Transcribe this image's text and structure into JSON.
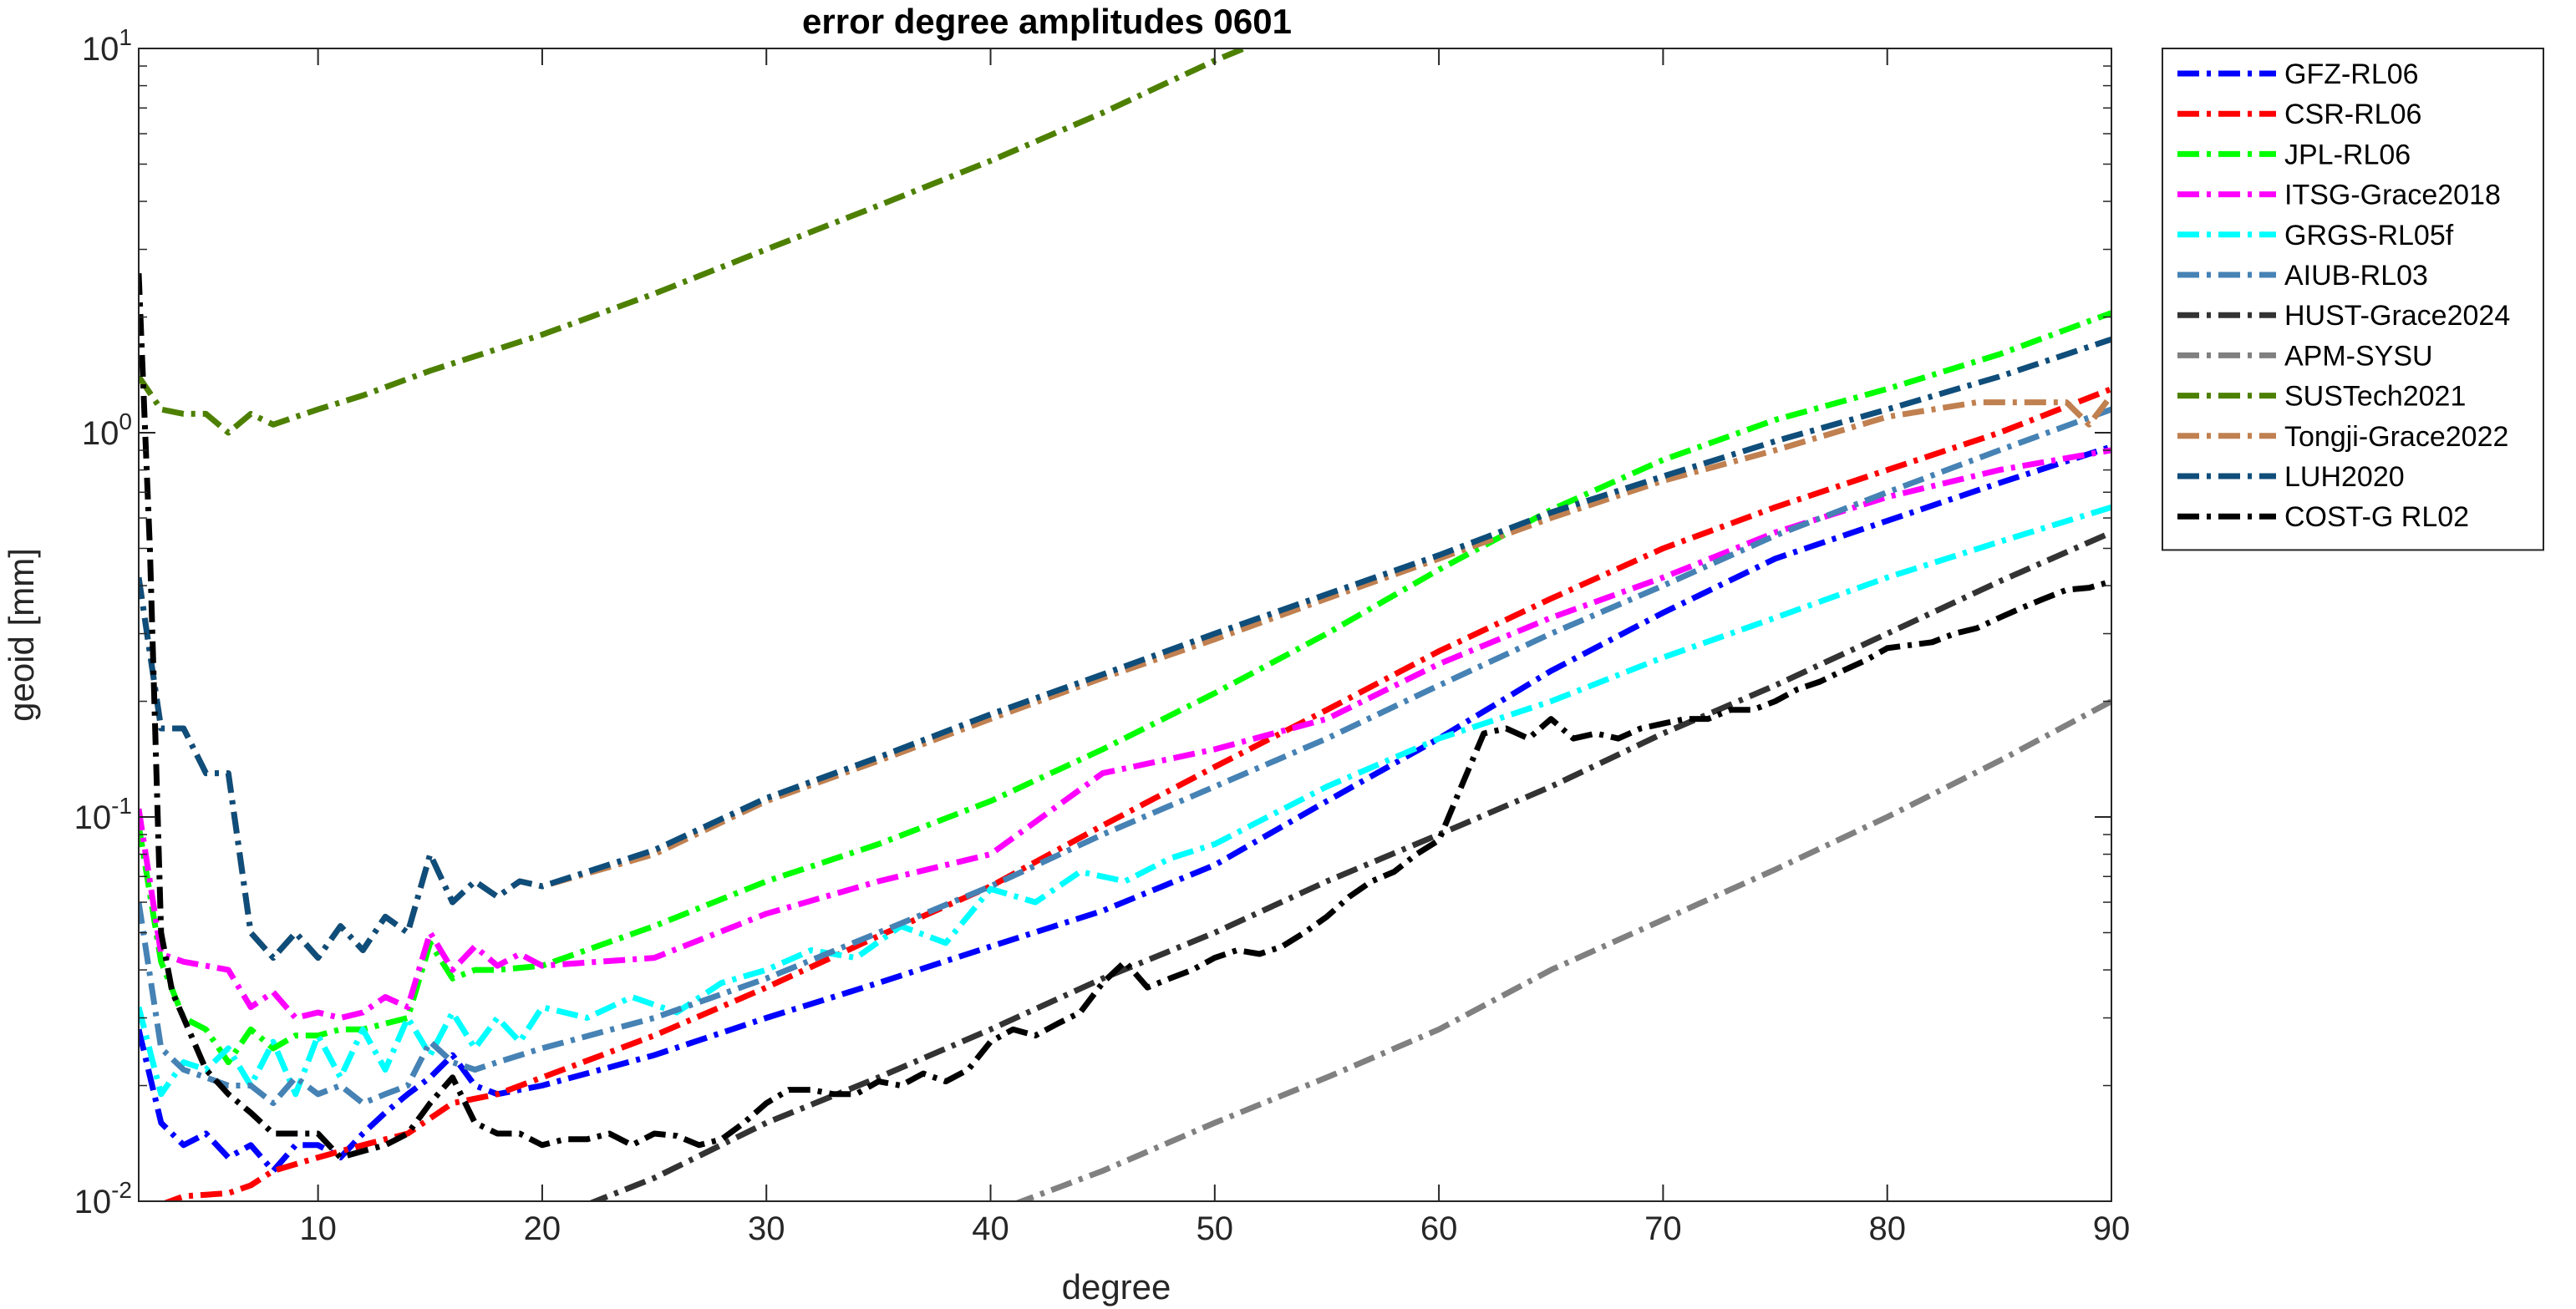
{
  "chart_data": {
    "type": "line",
    "title": "error degree amplitudes 0601",
    "xlabel": "degree",
    "ylabel": "geoid [mm]",
    "xlim": [
      2,
      90
    ],
    "ylim": [
      0.01,
      10
    ],
    "yscale": "log",
    "grid": false,
    "legend_position": "outside-right-top",
    "x_ticks": [
      10,
      20,
      30,
      40,
      50,
      60,
      70,
      80,
      90
    ],
    "x_tick_labels": [
      "10",
      "20",
      "30",
      "40",
      "50",
      "60",
      "70",
      "80",
      "90"
    ],
    "y_ticks": [
      {
        "value": 0.01,
        "mantissa": "10",
        "exponent": "-2"
      },
      {
        "value": 0.1,
        "mantissa": "10",
        "exponent": "-1"
      },
      {
        "value": 1,
        "mantissa": "10",
        "exponent": "0"
      },
      {
        "value": 10,
        "mantissa": "10",
        "exponent": "1"
      }
    ],
    "series": [
      {
        "name": "GFZ-RL06",
        "color": "#0000ff",
        "x": [
          2,
          3,
          4,
          5,
          6,
          7,
          8,
          9,
          10,
          11,
          12,
          13,
          14,
          15,
          16,
          17,
          18,
          20,
          25,
          30,
          35,
          40,
          45,
          50,
          55,
          60,
          65,
          70,
          75,
          80,
          85,
          90
        ],
        "y": [
          0.028,
          0.016,
          0.014,
          0.015,
          0.013,
          0.014,
          0.012,
          0.014,
          0.014,
          0.013,
          0.015,
          0.017,
          0.019,
          0.021,
          0.024,
          0.02,
          0.019,
          0.02,
          0.024,
          0.03,
          0.037,
          0.046,
          0.057,
          0.075,
          0.11,
          0.16,
          0.24,
          0.34,
          0.47,
          0.59,
          0.74,
          0.92
        ]
      },
      {
        "name": "CSR-RL06",
        "color": "#ff0000",
        "x": [
          3,
          4,
          5,
          6,
          7,
          8,
          10,
          12,
          14,
          16,
          18,
          20,
          25,
          30,
          35,
          40,
          45,
          50,
          55,
          60,
          65,
          70,
          75,
          80,
          85,
          90
        ],
        "y": [
          0.0098,
          0.0103,
          0.0104,
          0.0105,
          0.011,
          0.012,
          0.013,
          0.014,
          0.015,
          0.018,
          0.019,
          0.021,
          0.027,
          0.036,
          0.049,
          0.066,
          0.095,
          0.135,
          0.19,
          0.27,
          0.37,
          0.5,
          0.64,
          0.8,
          1.0,
          1.3
        ]
      },
      {
        "name": "JPL-RL06",
        "color": "#00ff00",
        "x": [
          2,
          3,
          4,
          5,
          6,
          7,
          8,
          9,
          10,
          11,
          12,
          13,
          14,
          15,
          16,
          17,
          18,
          20,
          25,
          30,
          35,
          40,
          45,
          50,
          55,
          60,
          65,
          70,
          75,
          80,
          85,
          90
        ],
        "y": [
          0.095,
          0.042,
          0.03,
          0.028,
          0.023,
          0.028,
          0.025,
          0.027,
          0.027,
          0.028,
          0.028,
          0.029,
          0.03,
          0.047,
          0.038,
          0.04,
          0.04,
          0.041,
          0.052,
          0.068,
          0.085,
          0.11,
          0.15,
          0.21,
          0.3,
          0.44,
          0.63,
          0.85,
          1.08,
          1.3,
          1.6,
          2.05
        ]
      },
      {
        "name": "ITSG-Grace2018",
        "color": "#ff00ff",
        "x": [
          2,
          3,
          4,
          5,
          6,
          7,
          8,
          9,
          10,
          11,
          12,
          13,
          14,
          15,
          16,
          17,
          18,
          19,
          20,
          25,
          30,
          35,
          40,
          45,
          50,
          55,
          60,
          65,
          70,
          75,
          80,
          85,
          90
        ],
        "y": [
          0.105,
          0.044,
          0.042,
          0.041,
          0.04,
          0.032,
          0.035,
          0.03,
          0.031,
          0.03,
          0.031,
          0.034,
          0.032,
          0.05,
          0.04,
          0.046,
          0.041,
          0.044,
          0.041,
          0.043,
          0.056,
          0.068,
          0.08,
          0.13,
          0.15,
          0.18,
          0.25,
          0.33,
          0.42,
          0.55,
          0.68,
          0.8,
          0.9
        ]
      },
      {
        "name": "GRGS-RL05f",
        "color": "#00ffff",
        "x": [
          2,
          3,
          4,
          5,
          6,
          7,
          8,
          9,
          10,
          11,
          12,
          13,
          14,
          15,
          16,
          17,
          18,
          19,
          20,
          22,
          24,
          26,
          28,
          30,
          32,
          34,
          36,
          38,
          40,
          42,
          44,
          46,
          48,
          50,
          55,
          60,
          65,
          70,
          75,
          80,
          85,
          90
        ],
        "y": [
          0.032,
          0.019,
          0.023,
          0.022,
          0.025,
          0.02,
          0.026,
          0.019,
          0.027,
          0.021,
          0.028,
          0.022,
          0.03,
          0.024,
          0.031,
          0.025,
          0.03,
          0.026,
          0.032,
          0.03,
          0.034,
          0.031,
          0.037,
          0.04,
          0.045,
          0.043,
          0.052,
          0.047,
          0.065,
          0.06,
          0.072,
          0.068,
          0.078,
          0.085,
          0.12,
          0.16,
          0.2,
          0.26,
          0.33,
          0.42,
          0.52,
          0.64
        ]
      },
      {
        "name": "AIUB-RL03",
        "color": "#4682b4",
        "x": [
          2,
          3,
          4,
          5,
          6,
          7,
          8,
          9,
          10,
          11,
          12,
          13,
          14,
          15,
          16,
          17,
          18,
          20,
          25,
          30,
          35,
          40,
          45,
          50,
          55,
          60,
          65,
          70,
          75,
          80,
          85,
          90
        ],
        "y": [
          0.06,
          0.025,
          0.022,
          0.021,
          0.02,
          0.02,
          0.018,
          0.021,
          0.019,
          0.02,
          0.018,
          0.019,
          0.02,
          0.026,
          0.023,
          0.022,
          0.023,
          0.025,
          0.03,
          0.038,
          0.05,
          0.066,
          0.09,
          0.12,
          0.16,
          0.22,
          0.3,
          0.4,
          0.54,
          0.7,
          0.9,
          1.15
        ]
      },
      {
        "name": "HUST-Grace2024",
        "color": "#333333",
        "x": [
          22,
          25,
          30,
          35,
          40,
          45,
          50,
          55,
          60,
          65,
          70,
          75,
          80,
          85,
          90
        ],
        "y": [
          0.0098,
          0.0115,
          0.016,
          0.021,
          0.028,
          0.038,
          0.05,
          0.068,
          0.09,
          0.12,
          0.165,
          0.22,
          0.3,
          0.41,
          0.55
        ]
      },
      {
        "name": "APM-SYSU",
        "color": "#808080",
        "x": [
          41,
          45,
          50,
          55,
          60,
          65,
          70,
          75,
          80,
          85,
          90
        ],
        "y": [
          0.0098,
          0.012,
          0.016,
          0.021,
          0.028,
          0.04,
          0.054,
          0.073,
          0.1,
          0.14,
          0.2
        ]
      },
      {
        "name": "SUSTech2021",
        "color": "#4d8000",
        "x": [
          2,
          3,
          4,
          5,
          6,
          7,
          8,
          9,
          10,
          12,
          15,
          20,
          25,
          30,
          35,
          40,
          45,
          50,
          51.3
        ],
        "y": [
          1.4,
          1.15,
          1.12,
          1.12,
          1.0,
          1.12,
          1.05,
          1.1,
          1.15,
          1.25,
          1.45,
          1.8,
          2.3,
          3.0,
          3.9,
          5.1,
          6.8,
          9.3,
          10.0
        ]
      },
      {
        "name": "Tongji-Grace2022",
        "color": "#c08050",
        "x": [
          2,
          3,
          4,
          5,
          6,
          7,
          8,
          9,
          10,
          11,
          12,
          13,
          14,
          15,
          16,
          17,
          18,
          19,
          20,
          25,
          30,
          35,
          40,
          45,
          50,
          55,
          60,
          65,
          70,
          75,
          80,
          84,
          86,
          88,
          89,
          90
        ],
        "y": [
          0.42,
          0.17,
          0.17,
          0.13,
          0.13,
          0.05,
          0.043,
          0.05,
          0.043,
          0.052,
          0.045,
          0.055,
          0.05,
          0.08,
          0.06,
          0.068,
          0.062,
          0.068,
          0.066,
          0.08,
          0.11,
          0.14,
          0.18,
          0.23,
          0.29,
          0.37,
          0.47,
          0.6,
          0.75,
          0.9,
          1.1,
          1.2,
          1.2,
          1.2,
          1.05,
          1.25
        ]
      },
      {
        "name": "LUH2020",
        "color": "#0f4d7a",
        "x": [
          2,
          3,
          4,
          5,
          6,
          7,
          8,
          9,
          10,
          11,
          12,
          13,
          14,
          15,
          16,
          17,
          18,
          19,
          20,
          25,
          30,
          35,
          40,
          45,
          50,
          55,
          60,
          65,
          70,
          75,
          80,
          85,
          90
        ],
        "y": [
          0.42,
          0.17,
          0.17,
          0.13,
          0.13,
          0.05,
          0.043,
          0.05,
          0.043,
          0.052,
          0.045,
          0.055,
          0.05,
          0.08,
          0.06,
          0.068,
          0.062,
          0.068,
          0.066,
          0.082,
          0.112,
          0.143,
          0.185,
          0.235,
          0.3,
          0.38,
          0.48,
          0.62,
          0.77,
          0.95,
          1.15,
          1.4,
          1.75
        ]
      },
      {
        "name": "COST-G RL02",
        "color": "#000000",
        "x": [
          2,
          2.5,
          3,
          3.5,
          4,
          5,
          6,
          7,
          8,
          9,
          10,
          11,
          12,
          13,
          14,
          15,
          16,
          17,
          18,
          19,
          20,
          21,
          22,
          23,
          24,
          25,
          26,
          27,
          28,
          29,
          30,
          31,
          32,
          33,
          34,
          35,
          36,
          37,
          38,
          39,
          40,
          41,
          42,
          43,
          44,
          45,
          46,
          47,
          48,
          49,
          50,
          51,
          52,
          53,
          54,
          55,
          56,
          57,
          58,
          59,
          60,
          61,
          62,
          63,
          64,
          65,
          66,
          67,
          68,
          69,
          70,
          71,
          72,
          73,
          74,
          75,
          76,
          77,
          78,
          79,
          80,
          81,
          82,
          83,
          84,
          85,
          86,
          87,
          88,
          89,
          90
        ],
        "y": [
          2.6,
          0.5,
          0.05,
          0.035,
          0.03,
          0.022,
          0.019,
          0.017,
          0.015,
          0.015,
          0.015,
          0.013,
          0.0135,
          0.014,
          0.015,
          0.018,
          0.021,
          0.016,
          0.015,
          0.015,
          0.014,
          0.0145,
          0.0145,
          0.015,
          0.014,
          0.015,
          0.0148,
          0.014,
          0.0145,
          0.016,
          0.018,
          0.0195,
          0.0195,
          0.019,
          0.019,
          0.0205,
          0.02,
          0.0215,
          0.0205,
          0.022,
          0.026,
          0.028,
          0.027,
          0.029,
          0.031,
          0.037,
          0.042,
          0.036,
          0.038,
          0.04,
          0.043,
          0.045,
          0.044,
          0.046,
          0.05,
          0.055,
          0.062,
          0.068,
          0.072,
          0.08,
          0.087,
          0.12,
          0.165,
          0.17,
          0.16,
          0.18,
          0.16,
          0.165,
          0.16,
          0.17,
          0.175,
          0.18,
          0.18,
          0.19,
          0.19,
          0.2,
          0.215,
          0.225,
          0.24,
          0.255,
          0.275,
          0.28,
          0.285,
          0.3,
          0.31,
          0.33,
          0.35,
          0.37,
          0.39,
          0.395,
          0.41
        ]
      }
    ]
  }
}
